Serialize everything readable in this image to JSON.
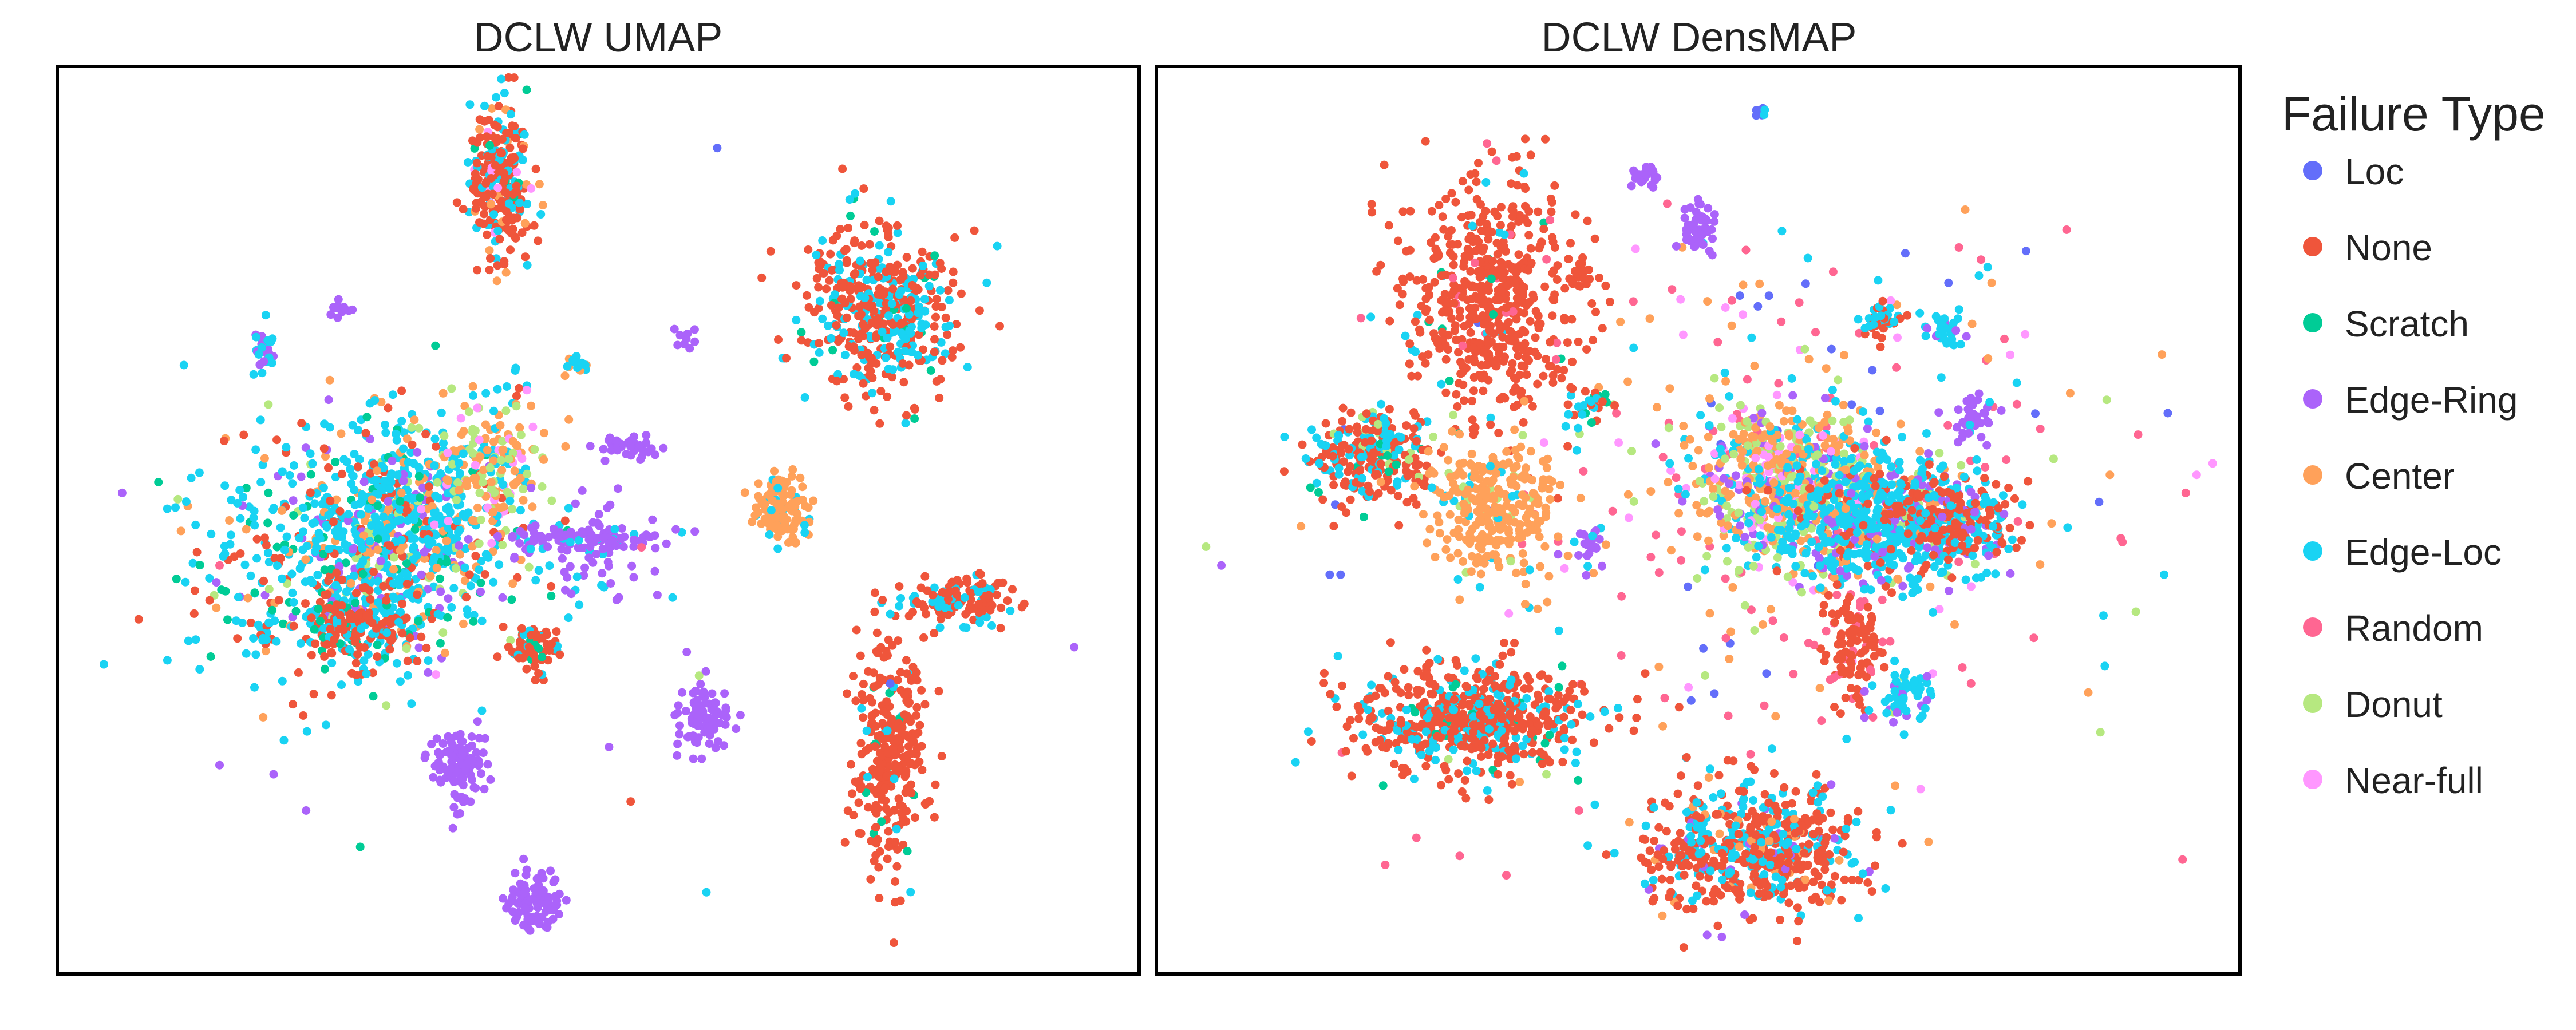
{
  "legend": {
    "title": "Failure Type",
    "placement": "right",
    "items": [
      {
        "label": "Loc",
        "color": "#636EFA"
      },
      {
        "label": "None",
        "color": "#EF553B"
      },
      {
        "label": "Scratch",
        "color": "#00CC96"
      },
      {
        "label": "Edge-Ring",
        "color": "#AB63FA"
      },
      {
        "label": "Center",
        "color": "#FFA15A"
      },
      {
        "label": "Edge-Loc",
        "color": "#19D3F3"
      },
      {
        "label": "Random",
        "color": "#FF6692"
      },
      {
        "label": "Donut",
        "color": "#B6E880"
      },
      {
        "label": "Near-full",
        "color": "#FF97FF"
      }
    ]
  },
  "chart_data": [
    {
      "type": "scatter",
      "title": "DCLW UMAP",
      "xlabel": "",
      "ylabel": "",
      "xlim": [
        0,
        100
      ],
      "ylim": [
        0,
        100
      ],
      "grid": false,
      "axes_ticks": false,
      "clusters": [
        {
          "cx": 41,
          "cy": 88,
          "sx": 1.4,
          "sy": 4.5,
          "n": 260,
          "mix": {
            "None": 0.65,
            "Edge-Loc": 0.2,
            "Center": 0.08,
            "Near-full": 0.05,
            "Scratch": 0.02
          }
        },
        {
          "cx": 76,
          "cy": 73,
          "sx": 3.5,
          "sy": 4.5,
          "n": 450,
          "mix": {
            "None": 0.62,
            "Edge-Loc": 0.33,
            "Scratch": 0.05
          }
        },
        {
          "cx": 32,
          "cy": 50,
          "sx": 3.5,
          "sy": 6,
          "n": 350,
          "mix": {
            "Edge-Loc": 0.55,
            "Center": 0.15,
            "Edge-Ring": 0.1,
            "Donut": 0.1,
            "Scratch": 0.05,
            "None": 0.05
          }
        },
        {
          "cx": 28,
          "cy": 47,
          "sx": 8,
          "sy": 7,
          "n": 650,
          "mix": {
            "Edge-Loc": 0.55,
            "None": 0.15,
            "Edge-Ring": 0.1,
            "Scratch": 0.08,
            "Center": 0.07,
            "Donut": 0.05
          }
        },
        {
          "cx": 40,
          "cy": 56,
          "sx": 2.5,
          "sy": 4,
          "n": 180,
          "mix": {
            "Center": 0.45,
            "Donut": 0.25,
            "Near-full": 0.15,
            "Edge-Loc": 0.15
          }
        },
        {
          "cx": 27,
          "cy": 38,
          "sx": 3,
          "sy": 2,
          "n": 180,
          "mix": {
            "None": 0.7,
            "Edge-Loc": 0.2,
            "Scratch": 0.1
          }
        },
        {
          "cx": 67,
          "cy": 51,
          "sx": 1.2,
          "sy": 2.2,
          "n": 120,
          "mix": {
            "Center": 0.85,
            "Edge-Loc": 0.15
          }
        },
        {
          "cx": 83,
          "cy": 41,
          "sx": 2.4,
          "sy": 1.3,
          "n": 130,
          "mix": {
            "None": 0.7,
            "Edge-Loc": 0.3
          }
        },
        {
          "cx": 77,
          "cy": 24,
          "sx": 1.6,
          "sy": 6,
          "n": 280,
          "mix": {
            "None": 0.9,
            "Edge-Loc": 0.05,
            "Scratch": 0.05
          }
        },
        {
          "cx": 44,
          "cy": 36,
          "sx": 1.2,
          "sy": 1.3,
          "n": 70,
          "mix": {
            "None": 0.7,
            "Edge-Loc": 0.2,
            "Scratch": 0.1
          }
        },
        {
          "cx": 37,
          "cy": 23,
          "sx": 1.2,
          "sy": 2.2,
          "n": 110,
          "mix": {
            "Edge-Ring": 1.0
          }
        },
        {
          "cx": 60,
          "cy": 28,
          "sx": 1.2,
          "sy": 2.2,
          "n": 90,
          "mix": {
            "Edge-Ring": 0.92,
            "Donut": 0.08
          }
        },
        {
          "cx": 44,
          "cy": 8,
          "sx": 1.3,
          "sy": 1.6,
          "n": 100,
          "mix": {
            "Edge-Ring": 1.0
          }
        },
        {
          "cx": 49,
          "cy": 48,
          "sx": 4,
          "sy": 0.6,
          "n": 80,
          "mix": {
            "Edge-Ring": 0.9,
            "Edge-Loc": 0.1
          }
        },
        {
          "cx": 49,
          "cy": 46,
          "sx": 3,
          "sy": 3,
          "n": 60,
          "mix": {
            "Edge-Ring": 0.8,
            "Edge-Loc": 0.2
          }
        },
        {
          "cx": 53,
          "cy": 58,
          "sx": 1.5,
          "sy": 0.6,
          "n": 40,
          "mix": {
            "Edge-Ring": 1.0
          }
        },
        {
          "cx": 19,
          "cy": 69,
          "sx": 0.5,
          "sy": 1.1,
          "n": 30,
          "mix": {
            "Edge-Loc": 0.5,
            "Edge-Ring": 0.5
          }
        },
        {
          "cx": 26,
          "cy": 73,
          "sx": 0.5,
          "sy": 0.5,
          "n": 12,
          "mix": {
            "Edge-Ring": 1.0
          }
        },
        {
          "cx": 48,
          "cy": 67,
          "sx": 0.6,
          "sy": 0.6,
          "n": 14,
          "mix": {
            "Edge-Loc": 0.6,
            "Center": 0.4
          }
        },
        {
          "cx": 58,
          "cy": 70,
          "sx": 0.6,
          "sy": 0.6,
          "n": 10,
          "mix": {
            "Edge-Ring": 1.0
          }
        },
        {
          "cx": 19,
          "cy": 38,
          "sx": 0.6,
          "sy": 0.8,
          "n": 16,
          "mix": {
            "Edge-Loc": 0.6,
            "None": 0.4
          }
        }
      ],
      "points": [
        {
          "x": 61,
          "y": 91,
          "type": "Loc"
        },
        {
          "x": 6,
          "y": 53,
          "type": "Edge-Ring"
        },
        {
          "x": 15,
          "y": 45,
          "type": "Random"
        },
        {
          "x": 54,
          "y": 47,
          "type": "Random"
        },
        {
          "x": 35,
          "y": 33,
          "type": "Near-full"
        },
        {
          "x": 15,
          "y": 23,
          "type": "Edge-Ring"
        },
        {
          "x": 20,
          "y": 22,
          "type": "Edge-Ring"
        },
        {
          "x": 23,
          "y": 18,
          "type": "Edge-Ring"
        },
        {
          "x": 28,
          "y": 14,
          "type": "Scratch"
        },
        {
          "x": 51,
          "y": 25,
          "type": "Edge-Ring"
        },
        {
          "x": 53,
          "y": 19,
          "type": "None"
        },
        {
          "x": 60,
          "y": 9,
          "type": "Edge-Loc"
        },
        {
          "x": 77,
          "y": 32,
          "type": "Loc"
        },
        {
          "x": 94,
          "y": 36,
          "type": "Edge-Ring"
        }
      ]
    },
    {
      "type": "scatter",
      "title": "DCLW DensMAP",
      "xlabel": "",
      "ylabel": "",
      "xlim": [
        0,
        100
      ],
      "ylim": [
        0,
        100
      ],
      "grid": false,
      "axes_ticks": false,
      "clusters": [
        {
          "cx": 31,
          "cy": 75,
          "sx": 4,
          "sy": 7,
          "n": 550,
          "mix": {
            "None": 0.92,
            "Scratch": 0.02,
            "Edge-Loc": 0.02,
            "Random": 0.04
          }
        },
        {
          "cx": 20,
          "cy": 57,
          "sx": 2.7,
          "sy": 2.5,
          "n": 260,
          "mix": {
            "None": 0.6,
            "Edge-Loc": 0.3,
            "Scratch": 0.05,
            "Donut": 0.05
          }
        },
        {
          "cx": 31,
          "cy": 51,
          "sx": 3,
          "sy": 3.5,
          "n": 300,
          "mix": {
            "Center": 0.9,
            "Edge-Loc": 0.05,
            "Donut": 0.05
          }
        },
        {
          "cx": 59,
          "cy": 54,
          "sx": 4.5,
          "sy": 4.5,
          "n": 650,
          "mix": {
            "Center": 0.35,
            "Donut": 0.25,
            "Edge-Loc": 0.2,
            "Near-full": 0.1,
            "Edge-Ring": 0.1
          }
        },
        {
          "cx": 67,
          "cy": 50,
          "sx": 5,
          "sy": 3.5,
          "n": 600,
          "mix": {
            "Edge-Loc": 0.6,
            "Edge-Ring": 0.15,
            "None": 0.15,
            "Donut": 0.05,
            "Center": 0.05
          }
        },
        {
          "cx": 74,
          "cy": 50,
          "sx": 2.5,
          "sy": 2.5,
          "n": 180,
          "mix": {
            "None": 0.6,
            "Edge-Loc": 0.3,
            "Edge-Ring": 0.1
          }
        },
        {
          "cx": 29,
          "cy": 28,
          "sx": 5,
          "sy": 3,
          "n": 600,
          "mix": {
            "None": 0.7,
            "Edge-Loc": 0.25,
            "Scratch": 0.05
          }
        },
        {
          "cx": 55,
          "cy": 14,
          "sx": 5,
          "sy": 3.5,
          "n": 550,
          "mix": {
            "None": 0.6,
            "Edge-Loc": 0.3,
            "Center": 0.05,
            "Edge-Ring": 0.05
          }
        },
        {
          "cx": 64,
          "cy": 36,
          "sx": 1.3,
          "sy": 3,
          "n": 110,
          "mix": {
            "None": 0.9,
            "Random": 0.1
          }
        },
        {
          "cx": 69,
          "cy": 31,
          "sx": 1.3,
          "sy": 1.5,
          "n": 60,
          "mix": {
            "Edge-Loc": 0.7,
            "Edge-Ring": 0.2,
            "Donut": 0.1
          }
        },
        {
          "cx": 50,
          "cy": 82,
          "sx": 0.8,
          "sy": 1.5,
          "n": 50,
          "mix": {
            "Edge-Ring": 1.0
          }
        },
        {
          "cx": 45,
          "cy": 88,
          "sx": 0.8,
          "sy": 0.5,
          "n": 25,
          "mix": {
            "Edge-Ring": 1.0
          }
        },
        {
          "cx": 67,
          "cy": 72,
          "sx": 0.9,
          "sy": 1.0,
          "n": 40,
          "mix": {
            "None": 0.5,
            "Edge-Loc": 0.5
          }
        },
        {
          "cx": 73,
          "cy": 71,
          "sx": 0.9,
          "sy": 0.9,
          "n": 35,
          "mix": {
            "Edge-Loc": 0.8,
            "Edge-Ring": 0.2
          }
        },
        {
          "cx": 75,
          "cy": 61,
          "sx": 1.2,
          "sy": 1.3,
          "n": 40,
          "mix": {
            "Edge-Ring": 0.9,
            "Edge-Loc": 0.1
          }
        },
        {
          "cx": 40,
          "cy": 63,
          "sx": 1.0,
          "sy": 0.8,
          "n": 30,
          "mix": {
            "None": 0.5,
            "Edge-Loc": 0.3,
            "Scratch": 0.2
          }
        },
        {
          "cx": 40,
          "cy": 47,
          "sx": 0.8,
          "sy": 1.0,
          "n": 25,
          "mix": {
            "Edge-Ring": 0.8,
            "Edge-Loc": 0.2
          }
        },
        {
          "cx": 39,
          "cy": 77,
          "sx": 0.7,
          "sy": 0.8,
          "n": 20,
          "mix": {
            "None": 1.0
          }
        },
        {
          "cx": 56,
          "cy": 95,
          "sx": 0.4,
          "sy": 0.3,
          "n": 8,
          "mix": {
            "Loc": 0.5,
            "Edge-Loc": 0.5
          }
        }
      ],
      "scatter_fields": [
        {
          "cx": 55,
          "cy": 50,
          "sx": 17,
          "sy": 15,
          "n": 230,
          "mix": {
            "Random": 0.38,
            "Center": 0.2,
            "Edge-Loc": 0.14,
            "Loc": 0.1,
            "Near-full": 0.1,
            "Donut": 0.08
          }
        },
        {
          "cx": 65,
          "cy": 72,
          "sx": 10,
          "sy": 8,
          "n": 45,
          "mix": {
            "Random": 0.3,
            "Near-full": 0.25,
            "Center": 0.2,
            "Edge-Loc": 0.15,
            "Loc": 0.1
          }
        }
      ],
      "points": [
        {
          "x": 6,
          "y": 45,
          "type": "Edge-Ring"
        },
        {
          "x": 16,
          "y": 44,
          "type": "Loc"
        },
        {
          "x": 17,
          "y": 44,
          "type": "Loc"
        },
        {
          "x": 84,
          "y": 82,
          "type": "Random"
        },
        {
          "x": 95,
          "y": 53,
          "type": "Random"
        },
        {
          "x": 96,
          "y": 55,
          "type": "Near-full"
        },
        {
          "x": 89,
          "y": 48,
          "type": "Random"
        },
        {
          "x": 87,
          "y": 52,
          "type": "Loc"
        },
        {
          "x": 88,
          "y": 55,
          "type": "Center"
        },
        {
          "x": 93,
          "y": 44,
          "type": "Edge-Loc"
        },
        {
          "x": 86,
          "y": 31,
          "type": "Center"
        },
        {
          "x": 24,
          "y": 15,
          "type": "Random"
        },
        {
          "x": 28,
          "y": 13,
          "type": "Random"
        },
        {
          "x": 36,
          "y": 22,
          "type": "Donut"
        },
        {
          "x": 39,
          "y": 18,
          "type": "Random"
        }
      ]
    }
  ]
}
